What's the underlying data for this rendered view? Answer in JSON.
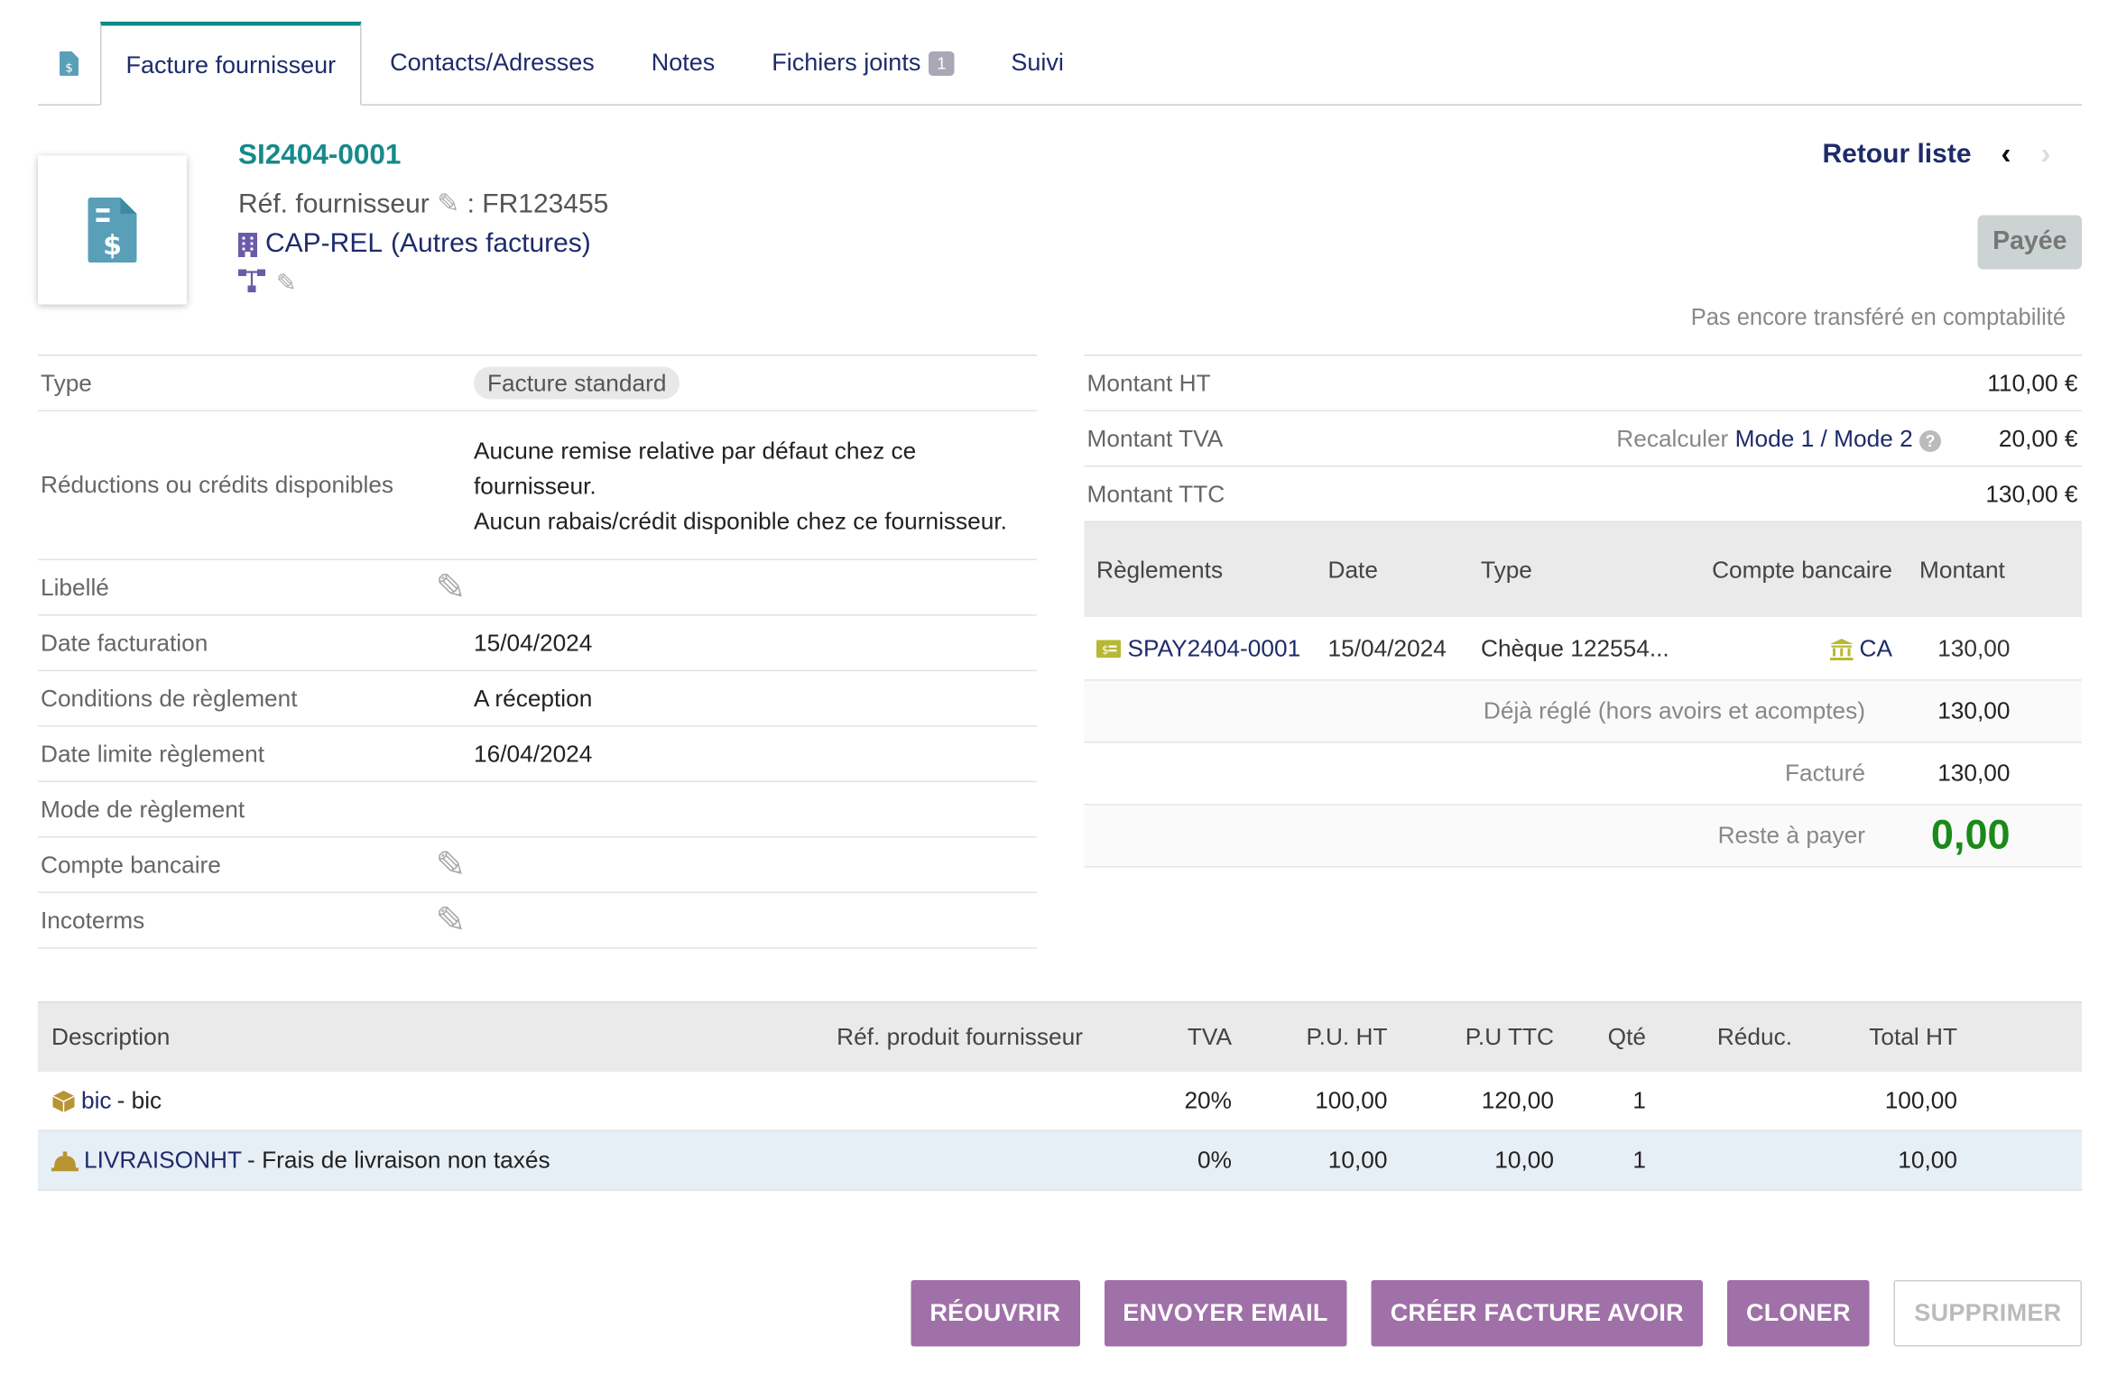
{
  "tabs": [
    {
      "label": "Facture fournisseur"
    },
    {
      "label": "Contacts/Adresses"
    },
    {
      "label": "Notes"
    },
    {
      "label": "Fichiers joints",
      "badge": "1"
    },
    {
      "label": "Suivi"
    }
  ],
  "header": {
    "ref": "SI2404-0001",
    "ref_supplier_label": "Réf. fournisseur",
    "ref_supplier_value": ": FR123455",
    "company": "CAP-REL",
    "company_suffix": "(Autres factures)",
    "back_label": "Retour liste",
    "status": "Payée",
    "compta_note": "Pas encore transféré en comptabilité"
  },
  "fields": {
    "type_label": "Type",
    "type_value": "Facture standard",
    "reductions_label": "Réductions ou crédits disponibles",
    "reductions_line1": "Aucune remise relative par défaut chez ce fournisseur.",
    "reductions_line2": "Aucun rabais/crédit disponible chez ce fournisseur.",
    "libelle_label": "Libellé",
    "date_fact_label": "Date facturation",
    "date_fact_value": "15/04/2024",
    "cond_label": "Conditions de règlement",
    "cond_value": "A réception",
    "date_lim_label": "Date limite règlement",
    "date_lim_value": "16/04/2024",
    "mode_label": "Mode de règlement",
    "compte_label": "Compte bancaire",
    "incoterms_label": "Incoterms"
  },
  "totals": {
    "ht_label": "Montant HT",
    "ht_value": "110,00 €",
    "tva_label": "Montant TVA",
    "recalc_label": "Recalculer",
    "mode1": "Mode 1",
    "sep": "/",
    "mode2": "Mode 2",
    "tva_value": "20,00 €",
    "ttc_label": "Montant TTC",
    "ttc_value": "130,00 €"
  },
  "payments": {
    "headers": {
      "reglements": "Règlements",
      "date": "Date",
      "type": "Type",
      "compte": "Compte bancaire",
      "montant": "Montant"
    },
    "row": {
      "ref": "SPAY2404-0001",
      "date": "15/04/2024",
      "type": "Chèque 122554...",
      "compte": "CA",
      "montant": "130,00"
    },
    "deja_label": "Déjà réglé (hors avoirs et acomptes)",
    "deja_value": "130,00",
    "facture_label": "Facturé",
    "facture_value": "130,00",
    "reste_label": "Reste à payer",
    "reste_value": "0,00",
    "reste_color": "#1a8a1a"
  },
  "lines": {
    "headers": {
      "desc": "Description",
      "ref": "Réf. produit fournisseur",
      "tva": "TVA",
      "pu_ht": "P.U. HT",
      "pu_ttc": "P.U TTC",
      "qte": "Qté",
      "reduc": "Réduc.",
      "total": "Total HT"
    },
    "rows": [
      {
        "product": "bic",
        "desc": " - bic",
        "tva": "20%",
        "pu_ht": "100,00",
        "pu_ttc": "120,00",
        "qte": "1",
        "total": "100,00"
      },
      {
        "product": "LIVRAISONHT",
        "desc": " - Frais de livraison non taxés",
        "tva": "0%",
        "pu_ht": "10,00",
        "pu_ttc": "10,00",
        "qte": "1",
        "total": "10,00"
      }
    ]
  },
  "buttons": {
    "reopen": "RÉOUVRIR",
    "email": "ENVOYER EMAIL",
    "avoir": "CRÉER FACTURE AVOIR",
    "clone": "CLONER",
    "delete": "SUPPRIMER"
  },
  "colors": {
    "accent": "#a070a8",
    "teal": "#168a8a",
    "link": "#1e2b6b"
  }
}
